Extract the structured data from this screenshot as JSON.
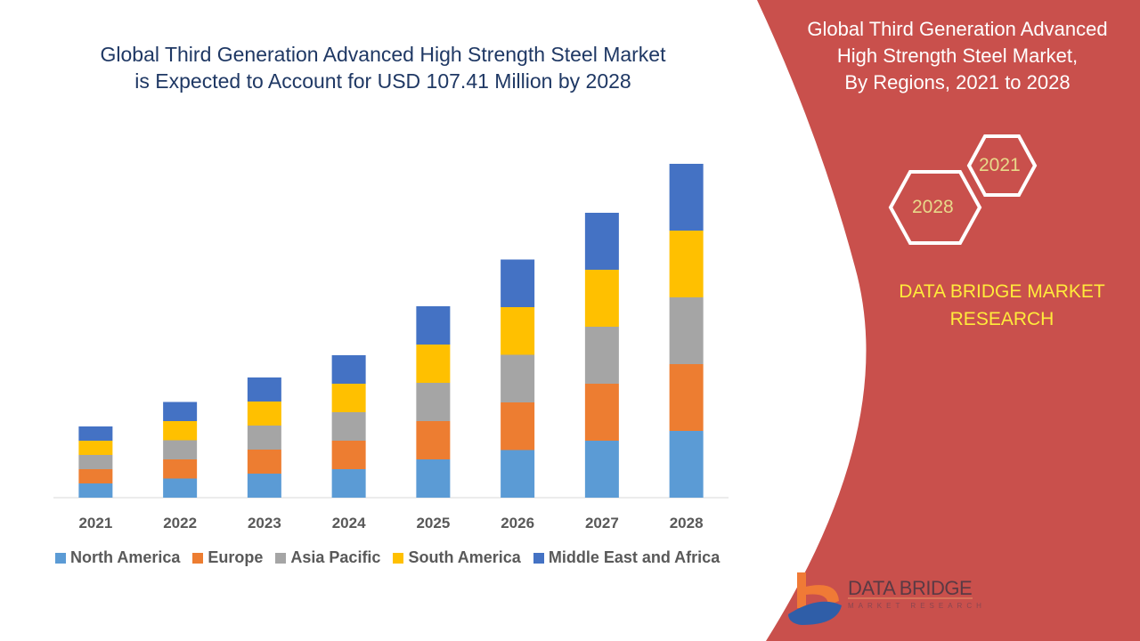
{
  "header": {
    "title_line1": "Global Third Generation Advanced High Strength Steel Market",
    "title_line2": "is Expected to Account for USD 107.41 Million by 2028"
  },
  "side_panel": {
    "title_line1": "Global Third Generation Advanced",
    "title_line2": "High Strength Steel Market,",
    "title_line3": "By Regions, 2021 to 2028",
    "hex_start": "2021",
    "hex_end": "2028",
    "brand_line1": "DATA BRIDGE MARKET",
    "brand_line2": "RESEARCH",
    "logo_text": "DATA BRIDGE",
    "logo_subtext": "MARKET RESEARCH",
    "panel_color": "#c9504c"
  },
  "chart_data": {
    "type": "bar",
    "stacked": true,
    "title": "",
    "xlabel": "",
    "ylabel": "",
    "categories": [
      "2021",
      "2022",
      "2023",
      "2024",
      "2025",
      "2026",
      "2027",
      "2028"
    ],
    "series": [
      {
        "name": "North America",
        "color": "#5b9bd5",
        "values": [
          16,
          21.5,
          27,
          32,
          43,
          53.5,
          64,
          75
        ]
      },
      {
        "name": "Europe",
        "color": "#ed7d31",
        "values": [
          16,
          21.5,
          27,
          32,
          43,
          53.5,
          64,
          75
        ]
      },
      {
        "name": "Asia Pacific",
        "color": "#a5a5a5",
        "values": [
          16,
          21.5,
          27,
          32,
          43,
          53.5,
          64,
          75
        ]
      },
      {
        "name": "South America",
        "color": "#ffc000",
        "values": [
          16,
          21.5,
          27,
          32,
          43,
          53.5,
          64,
          75
        ]
      },
      {
        "name": "Middle East and Africa",
        "color": "#4472c4",
        "values": [
          16,
          21.5,
          27,
          32,
          43,
          53.5,
          64,
          75
        ]
      }
    ],
    "ylim": [
      0,
      400
    ],
    "grid": false,
    "legend_position": "bottom",
    "value_note_units": "relative (no axis shown)"
  }
}
